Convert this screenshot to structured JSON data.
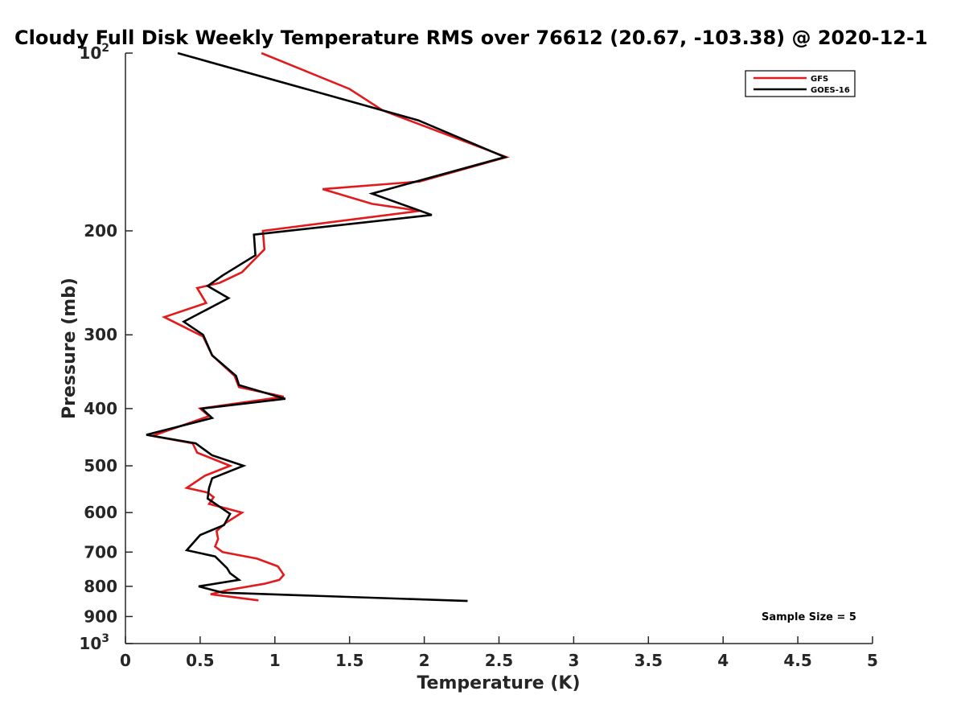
{
  "chart_data": {
    "type": "line",
    "title": "Cloudy Full Disk Weekly Temperature RMS over 76612 (20.67, -103.38) @ 2020-12-1",
    "xlabel": "Temperature (K)",
    "ylabel": "Pressure (mb)",
    "xlim": [
      0,
      5
    ],
    "ylim": [
      100,
      1000
    ],
    "y_scale": "log",
    "y_reversed": true,
    "x_ticks": [
      {
        "value": 0,
        "label": "0"
      },
      {
        "value": 0.5,
        "label": "0.5"
      },
      {
        "value": 1,
        "label": "1"
      },
      {
        "value": 1.5,
        "label": "1.5"
      },
      {
        "value": 2,
        "label": "2"
      },
      {
        "value": 2.5,
        "label": "2.5"
      },
      {
        "value": 3,
        "label": "3"
      },
      {
        "value": 3.5,
        "label": "3.5"
      },
      {
        "value": 4,
        "label": "4"
      },
      {
        "value": 4.5,
        "label": "4.5"
      },
      {
        "value": 5,
        "label": "5"
      }
    ],
    "y_ticks": [
      {
        "value": 100,
        "label": "10",
        "sup": "2"
      },
      {
        "value": 200,
        "label": "200"
      },
      {
        "value": 300,
        "label": "300"
      },
      {
        "value": 400,
        "label": "400"
      },
      {
        "value": 500,
        "label": "500"
      },
      {
        "value": 600,
        "label": "600"
      },
      {
        "value": 700,
        "label": "700"
      },
      {
        "value": 800,
        "label": "800"
      },
      {
        "value": 900,
        "label": "900"
      },
      {
        "value": 1000,
        "label": "10",
        "sup": "3"
      }
    ],
    "grid": false,
    "legend": {
      "position": "top-right"
    },
    "annotation": "Sample Size = 5",
    "series": [
      {
        "name": "GFS",
        "color": "#e31a1c",
        "points": [
          [
            0.91,
            100
          ],
          [
            1.5,
            115
          ],
          [
            1.72,
            125
          ],
          [
            2.55,
            150
          ],
          [
            1.97,
            165
          ],
          [
            1.32,
            170
          ],
          [
            1.65,
            180
          ],
          [
            1.97,
            185
          ],
          [
            0.92,
            200
          ],
          [
            0.93,
            215
          ],
          [
            0.78,
            235
          ],
          [
            0.63,
            245
          ],
          [
            0.48,
            250
          ],
          [
            0.54,
            265
          ],
          [
            0.26,
            280
          ],
          [
            0.52,
            302
          ],
          [
            0.58,
            325
          ],
          [
            0.73,
            352
          ],
          [
            0.76,
            368
          ],
          [
            1.06,
            382
          ],
          [
            0.5,
            400
          ],
          [
            0.56,
            412
          ],
          [
            0.18,
            445
          ],
          [
            0.45,
            458
          ],
          [
            0.48,
            475
          ],
          [
            0.7,
            500
          ],
          [
            0.53,
            520
          ],
          [
            0.41,
            545
          ],
          [
            0.55,
            555
          ],
          [
            0.59,
            565
          ],
          [
            0.56,
            580
          ],
          [
            0.78,
            600
          ],
          [
            0.67,
            625
          ],
          [
            0.61,
            645
          ],
          [
            0.62,
            665
          ],
          [
            0.6,
            685
          ],
          [
            0.65,
            700
          ],
          [
            0.88,
            718
          ],
          [
            1.02,
            740
          ],
          [
            1.06,
            765
          ],
          [
            1.03,
            780
          ],
          [
            0.93,
            792
          ],
          [
            0.68,
            812
          ],
          [
            0.57,
            825
          ],
          [
            0.89,
            845
          ]
        ]
      },
      {
        "name": "GOES-16",
        "color": "#000000",
        "points": [
          [
            0.35,
            100
          ],
          [
            1.96,
            130
          ],
          [
            2.54,
            150
          ],
          [
            1.65,
            173
          ],
          [
            2.05,
            188
          ],
          [
            0.86,
            203
          ],
          [
            0.87,
            220
          ],
          [
            0.65,
            238
          ],
          [
            0.55,
            248
          ],
          [
            0.69,
            260
          ],
          [
            0.39,
            285
          ],
          [
            0.52,
            300
          ],
          [
            0.58,
            325
          ],
          [
            0.74,
            352
          ],
          [
            0.76,
            365
          ],
          [
            1.07,
            385
          ],
          [
            0.51,
            400
          ],
          [
            0.58,
            415
          ],
          [
            0.14,
            443
          ],
          [
            0.47,
            458
          ],
          [
            0.58,
            480
          ],
          [
            0.79,
            500
          ],
          [
            0.58,
            525
          ],
          [
            0.56,
            545
          ],
          [
            0.55,
            568
          ],
          [
            0.7,
            603
          ],
          [
            0.66,
            630
          ],
          [
            0.5,
            655
          ],
          [
            0.41,
            695
          ],
          [
            0.6,
            712
          ],
          [
            0.68,
            745
          ],
          [
            0.7,
            760
          ],
          [
            0.76,
            780
          ],
          [
            0.49,
            800
          ],
          [
            0.65,
            820
          ],
          [
            2.29,
            847
          ]
        ]
      }
    ]
  }
}
